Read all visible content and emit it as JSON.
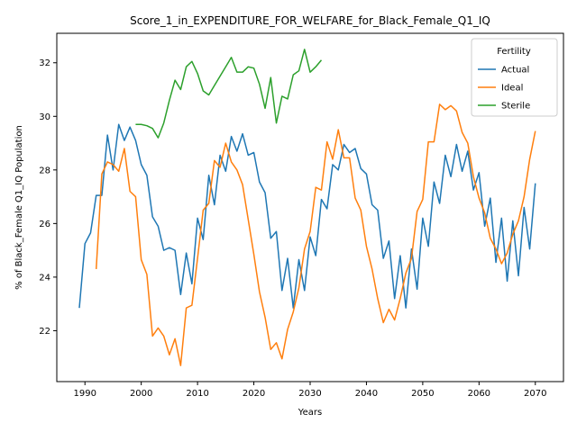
{
  "chart_data": {
    "type": "line",
    "title": "Score_1_in_EXPENDITURE_FOR_WELFARE_for_Black_Female_Q1_IQ",
    "xlabel": "Years",
    "ylabel": "% of Black_Female Q1_IQ Population",
    "xlim": [
      1985,
      2075
    ],
    "ylim": [
      20.1,
      33.1
    ],
    "xticks": [
      1990,
      2000,
      2010,
      2020,
      2030,
      2040,
      2050,
      2060,
      2070
    ],
    "yticks": [
      22,
      24,
      26,
      28,
      30,
      32
    ],
    "grid": false,
    "legend": {
      "title": "Fertility",
      "placement": "top-right"
    },
    "series": [
      {
        "name": "Actual",
        "color": "#1f77b4",
        "x": [
          1989,
          1990,
          1991,
          1992,
          1993,
          1994,
          1995,
          1996,
          1997,
          1998,
          1999,
          2000,
          2001,
          2002,
          2003,
          2004,
          2005,
          2006,
          2007,
          2008,
          2009,
          2010,
          2011,
          2012,
          2013,
          2014,
          2015,
          2016,
          2017,
          2018,
          2019,
          2020,
          2021,
          2022,
          2023,
          2024,
          2025,
          2026,
          2027,
          2028,
          2029,
          2030,
          2031,
          2032,
          2033,
          2034,
          2035,
          2036,
          2037,
          2038,
          2039,
          2040,
          2041,
          2042,
          2043,
          2044,
          2045,
          2046,
          2047,
          2048,
          2049,
          2050,
          2051,
          2052,
          2053,
          2054,
          2055,
          2056,
          2057,
          2058,
          2059,
          2060,
          2061,
          2062,
          2063,
          2064,
          2065,
          2066,
          2067,
          2068,
          2069,
          2070
        ],
        "values": [
          22.85,
          25.25,
          25.65,
          27.05,
          27.05,
          29.3,
          28.0,
          29.7,
          29.1,
          29.6,
          29.1,
          28.2,
          27.8,
          26.25,
          25.9,
          25.0,
          25.1,
          25.0,
          23.35,
          24.9,
          23.75,
          26.2,
          25.4,
          27.8,
          26.7,
          28.55,
          27.95,
          29.25,
          28.7,
          29.35,
          28.55,
          28.65,
          27.55,
          27.15,
          25.45,
          25.7,
          23.5,
          24.7,
          22.85,
          24.65,
          23.5,
          25.5,
          24.8,
          26.9,
          26.55,
          28.2,
          28.0,
          28.95,
          28.65,
          28.8,
          28.05,
          27.85,
          26.7,
          26.5,
          24.7,
          25.35,
          23.2,
          24.8,
          22.85,
          25.05,
          23.55,
          26.2,
          25.15,
          27.55,
          26.75,
          28.55,
          27.75,
          28.95,
          27.95,
          28.7,
          27.25,
          27.9,
          25.9,
          26.95,
          24.55,
          26.2,
          23.85,
          26.1,
          24.05,
          26.6,
          25.05,
          27.5
        ]
      },
      {
        "name": "Ideal",
        "color": "#ff7f0e",
        "x": [
          1992,
          1993,
          1994,
          1995,
          1996,
          1997,
          1998,
          1999,
          2000,
          2001,
          2002,
          2003,
          2004,
          2005,
          2006,
          2007,
          2008,
          2009,
          2010,
          2011,
          2012,
          2013,
          2014,
          2015,
          2016,
          2017,
          2018,
          2019,
          2020,
          2021,
          2022,
          2023,
          2024,
          2025,
          2026,
          2027,
          2028,
          2029,
          2030,
          2031,
          2032,
          2033,
          2034,
          2035,
          2036,
          2037,
          2038,
          2039,
          2040,
          2041,
          2042,
          2043,
          2044,
          2045,
          2046,
          2047,
          2048,
          2049,
          2050,
          2051,
          2052,
          2053,
          2054,
          2055,
          2056,
          2057,
          2058,
          2059,
          2060,
          2061,
          2062,
          2063,
          2064,
          2065,
          2066,
          2067,
          2068,
          2069,
          2070
        ],
        "values": [
          24.3,
          27.85,
          28.3,
          28.2,
          27.95,
          28.8,
          27.2,
          27.0,
          24.65,
          24.1,
          21.8,
          22.1,
          21.8,
          21.1,
          21.7,
          20.7,
          22.85,
          22.95,
          24.7,
          26.5,
          26.75,
          28.35,
          28.1,
          29.0,
          28.3,
          28.0,
          27.45,
          26.15,
          24.85,
          23.45,
          22.5,
          21.3,
          21.55,
          20.95,
          22.05,
          22.7,
          23.6,
          25.05,
          25.7,
          27.35,
          27.25,
          29.05,
          28.4,
          29.5,
          28.45,
          28.45,
          26.95,
          26.5,
          25.15,
          24.3,
          23.2,
          22.3,
          22.8,
          22.4,
          23.2,
          24.15,
          24.7,
          26.45,
          26.9,
          29.05,
          29.05,
          30.45,
          30.25,
          30.4,
          30.2,
          29.4,
          29.0,
          27.75,
          26.95,
          26.4,
          25.45,
          25.05,
          24.5,
          24.9,
          25.6,
          26.1,
          27.0,
          28.4,
          29.45
        ]
      },
      {
        "name": "Sterile",
        "color": "#2ca02c",
        "x": [
          1999,
          2000,
          2001,
          2002,
          2003,
          2004,
          2005,
          2006,
          2007,
          2008,
          2009,
          2010,
          2011,
          2012,
          2013,
          2014,
          2015,
          2016,
          2017,
          2018,
          2019,
          2020,
          2021,
          2022,
          2023,
          2024,
          2025,
          2026,
          2027,
          2028,
          2029,
          2030,
          2031,
          2032
        ],
        "values": [
          29.7,
          29.7,
          29.65,
          29.55,
          29.2,
          29.75,
          30.6,
          31.35,
          31.0,
          31.85,
          32.05,
          31.6,
          30.95,
          30.8,
          31.15,
          31.5,
          31.85,
          32.2,
          31.65,
          31.65,
          31.85,
          31.8,
          31.2,
          30.3,
          31.45,
          29.75,
          30.75,
          30.65,
          31.55,
          31.7,
          32.5,
          31.65,
          31.85,
          32.1
        ]
      }
    ]
  }
}
